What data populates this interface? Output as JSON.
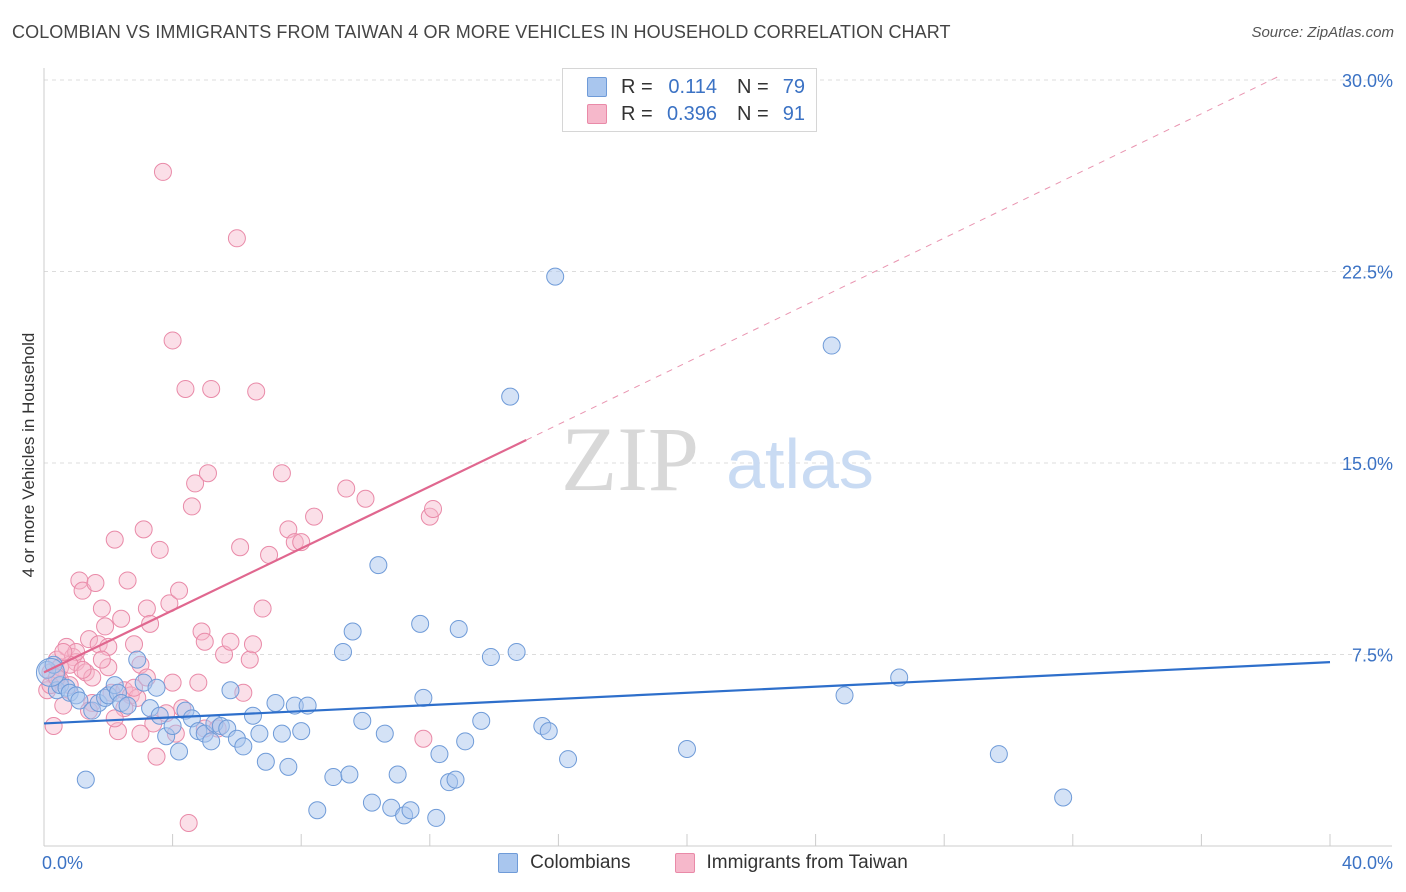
{
  "header": {
    "title": "COLOMBIAN VS IMMIGRANTS FROM TAIWAN 4 OR MORE VEHICLES IN HOUSEHOLD CORRELATION CHART",
    "source": "Source: ZipAtlas.com"
  },
  "watermark": {
    "zip": "ZIP",
    "atlas": "atlas"
  },
  "legend_top": {
    "series1": {
      "r_label": "R = ",
      "r_value": "0.114",
      "n_label": "N = ",
      "n_value": "79"
    },
    "series2": {
      "r_label": "R = ",
      "r_value": "0.396",
      "n_label": "N = ",
      "n_value": "91"
    }
  },
  "legend_bottom": {
    "series1": "Colombians",
    "series2": "Immigrants from Taiwan"
  },
  "colors": {
    "blue_fill": "#a9c6ee",
    "blue_stroke": "#6f9bd8",
    "blue_line": "#2e6fcb",
    "pink_fill": "#f6b8cb",
    "pink_stroke": "#e98aa8",
    "pink_line": "#e0678f",
    "tick_text": "#3b72c4",
    "grid": "#dcdcdc"
  },
  "chart_data": {
    "type": "scatter",
    "ylabel": "4 or more Vehicles in Household",
    "xlim": [
      0,
      40
    ],
    "ylim": [
      0,
      30
    ],
    "x_tick_labels": [
      {
        "value": 0,
        "label": "0.0%"
      },
      {
        "value": 40,
        "label": "40.0%"
      }
    ],
    "y_tick_labels": [
      {
        "value": 7.5,
        "label": "7.5%"
      },
      {
        "value": 15,
        "label": "15.0%"
      },
      {
        "value": 22.5,
        "label": "22.5%"
      },
      {
        "value": 30,
        "label": "30.0%"
      }
    ],
    "series": [
      {
        "name": "Colombians",
        "r": 0.114,
        "n": 79,
        "trend": {
          "x": [
            0,
            40
          ],
          "y": [
            4.8,
            7.2
          ]
        },
        "points": [
          [
            0.1,
            6.9
          ],
          [
            0.3,
            7.1
          ],
          [
            0.4,
            6.1
          ],
          [
            0.5,
            6.3
          ],
          [
            0.7,
            6.2
          ],
          [
            0.8,
            6.0
          ],
          [
            1.0,
            5.9
          ],
          [
            1.1,
            5.7
          ],
          [
            1.3,
            2.6
          ],
          [
            1.5,
            5.3
          ],
          [
            1.7,
            5.6
          ],
          [
            1.9,
            5.8
          ],
          [
            2.0,
            5.9
          ],
          [
            2.2,
            6.3
          ],
          [
            2.3,
            6.0
          ],
          [
            2.4,
            5.6
          ],
          [
            2.6,
            5.5
          ],
          [
            2.9,
            7.3
          ],
          [
            3.1,
            6.4
          ],
          [
            3.3,
            5.4
          ],
          [
            3.5,
            6.2
          ],
          [
            3.6,
            5.1
          ],
          [
            3.8,
            4.3
          ],
          [
            4.0,
            4.7
          ],
          [
            4.2,
            3.7
          ],
          [
            4.4,
            5.3
          ],
          [
            4.6,
            5.0
          ],
          [
            4.8,
            4.5
          ],
          [
            5.0,
            4.4
          ],
          [
            5.2,
            4.1
          ],
          [
            5.3,
            4.8
          ],
          [
            5.5,
            4.7
          ],
          [
            5.7,
            4.6
          ],
          [
            5.8,
            6.1
          ],
          [
            6.0,
            4.2
          ],
          [
            6.2,
            3.9
          ],
          [
            6.5,
            5.1
          ],
          [
            6.7,
            4.4
          ],
          [
            6.9,
            3.3
          ],
          [
            7.2,
            5.6
          ],
          [
            7.4,
            4.4
          ],
          [
            7.6,
            3.1
          ],
          [
            7.8,
            5.5
          ],
          [
            8.0,
            4.5
          ],
          [
            8.2,
            5.5
          ],
          [
            8.5,
            1.4
          ],
          [
            9.0,
            2.7
          ],
          [
            9.3,
            7.6
          ],
          [
            9.5,
            2.8
          ],
          [
            9.6,
            8.4
          ],
          [
            9.9,
            4.9
          ],
          [
            10.2,
            1.7
          ],
          [
            10.4,
            11.0
          ],
          [
            10.6,
            4.4
          ],
          [
            10.8,
            1.5
          ],
          [
            11.0,
            2.8
          ],
          [
            11.2,
            1.2
          ],
          [
            11.4,
            1.4
          ],
          [
            11.7,
            8.7
          ],
          [
            11.8,
            5.8
          ],
          [
            12.2,
            1.1
          ],
          [
            12.3,
            3.6
          ],
          [
            12.6,
            2.5
          ],
          [
            12.8,
            2.6
          ],
          [
            12.9,
            8.5
          ],
          [
            13.1,
            4.1
          ],
          [
            13.6,
            4.9
          ],
          [
            13.9,
            7.4
          ],
          [
            14.5,
            17.6
          ],
          [
            14.7,
            7.6
          ],
          [
            15.5,
            4.7
          ],
          [
            15.7,
            4.5
          ],
          [
            15.9,
            22.3
          ],
          [
            16.3,
            3.4
          ],
          [
            20.0,
            3.8
          ],
          [
            24.5,
            19.6
          ],
          [
            24.9,
            5.9
          ],
          [
            26.6,
            6.6
          ],
          [
            29.7,
            3.6
          ],
          [
            31.7,
            1.9
          ]
        ]
      },
      {
        "name": "Immigrants from Taiwan",
        "r": 0.396,
        "n": 91,
        "trend": {
          "x": [
            0,
            15
          ],
          "y": [
            6.8,
            15.9
          ]
        },
        "trend_dashed": {
          "x": [
            15,
            38.5
          ],
          "y": [
            15.9,
            30.2
          ]
        },
        "points": [
          [
            0.1,
            6.1
          ],
          [
            0.2,
            6.8
          ],
          [
            0.3,
            4.7
          ],
          [
            0.4,
            7.3
          ],
          [
            0.5,
            6.5
          ],
          [
            0.6,
            5.5
          ],
          [
            0.7,
            7.8
          ],
          [
            0.8,
            6.3
          ],
          [
            0.9,
            7.4
          ],
          [
            1.0,
            7.2
          ],
          [
            1.1,
            10.4
          ],
          [
            1.2,
            10.0
          ],
          [
            1.3,
            6.8
          ],
          [
            1.4,
            8.1
          ],
          [
            1.5,
            5.6
          ],
          [
            1.6,
            10.3
          ],
          [
            1.7,
            7.9
          ],
          [
            1.8,
            9.3
          ],
          [
            1.9,
            8.6
          ],
          [
            2.0,
            7.0
          ],
          [
            2.1,
            6.0
          ],
          [
            2.2,
            12.0
          ],
          [
            2.3,
            4.5
          ],
          [
            2.4,
            8.9
          ],
          [
            2.5,
            6.1
          ],
          [
            2.6,
            10.4
          ],
          [
            2.7,
            5.9
          ],
          [
            2.8,
            7.9
          ],
          [
            2.9,
            5.8
          ],
          [
            3.0,
            7.1
          ],
          [
            3.1,
            12.4
          ],
          [
            3.2,
            9.3
          ],
          [
            3.3,
            8.7
          ],
          [
            3.4,
            4.8
          ],
          [
            3.5,
            3.5
          ],
          [
            3.6,
            11.6
          ],
          [
            3.7,
            26.4
          ],
          [
            3.9,
            9.5
          ],
          [
            4.0,
            19.8
          ],
          [
            4.1,
            4.4
          ],
          [
            4.2,
            10.0
          ],
          [
            4.3,
            5.4
          ],
          [
            4.4,
            17.9
          ],
          [
            4.5,
            0.9
          ],
          [
            4.6,
            13.3
          ],
          [
            4.7,
            14.2
          ],
          [
            4.8,
            6.4
          ],
          [
            4.9,
            8.4
          ],
          [
            5.0,
            4.6
          ],
          [
            5.1,
            14.6
          ],
          [
            5.2,
            17.9
          ],
          [
            5.4,
            4.6
          ],
          [
            5.6,
            7.5
          ],
          [
            5.8,
            8.0
          ],
          [
            6.0,
            23.8
          ],
          [
            6.1,
            11.7
          ],
          [
            6.2,
            6.0
          ],
          [
            6.4,
            7.3
          ],
          [
            6.5,
            7.9
          ],
          [
            6.6,
            17.8
          ],
          [
            6.8,
            9.3
          ],
          [
            7.0,
            11.4
          ],
          [
            7.4,
            14.6
          ],
          [
            7.6,
            12.4
          ],
          [
            7.8,
            11.9
          ],
          [
            8.0,
            11.9
          ],
          [
            8.4,
            12.9
          ],
          [
            9.4,
            14.0
          ],
          [
            10.0,
            13.6
          ],
          [
            11.8,
            4.2
          ],
          [
            12.0,
            12.9
          ],
          [
            12.1,
            13.2
          ],
          [
            1.0,
            7.6
          ],
          [
            2.0,
            7.8
          ],
          [
            3.0,
            4.4
          ],
          [
            4.0,
            6.4
          ],
          [
            5.0,
            8.0
          ],
          [
            0.5,
            7.0
          ],
          [
            1.5,
            6.6
          ],
          [
            2.5,
            5.4
          ],
          [
            0.2,
            6.3
          ],
          [
            0.8,
            7.1
          ],
          [
            1.2,
            6.9
          ],
          [
            1.8,
            7.3
          ],
          [
            2.2,
            5.0
          ],
          [
            2.8,
            6.2
          ],
          [
            3.2,
            6.6
          ],
          [
            3.8,
            5.2
          ],
          [
            0.4,
            6.6
          ],
          [
            0.6,
            7.6
          ],
          [
            1.4,
            5.3
          ]
        ]
      }
    ]
  }
}
